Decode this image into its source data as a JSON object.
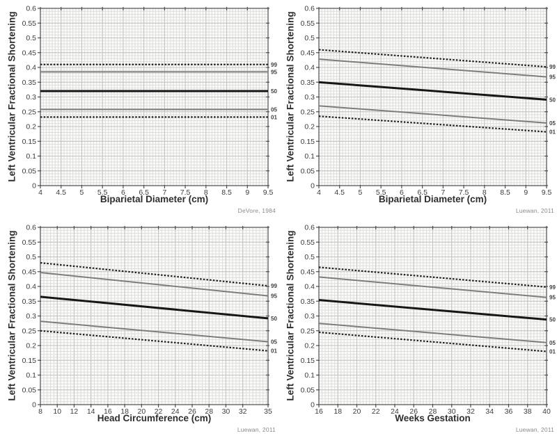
{
  "colors": {
    "page_bg": "#ffffff",
    "plot_bg": "#fbfbf9",
    "grid_minor": "#dddddb",
    "grid_major": "#c2c2c0",
    "frame": "#4d4d4d",
    "tick_text": "#3c3c3c",
    "axis_label": "#2e2e2e",
    "percentile_label": "#3f3f3f",
    "attribution": "#8a8a8a"
  },
  "line_styles": {
    "dashed_black": {
      "color": "#1f1f1f",
      "width": 2.2,
      "dash": "2.5 2.2"
    },
    "solid_gray": {
      "color": "#7d7d7d",
      "width": 2,
      "dash": ""
    },
    "solid_black_thick": {
      "color": "#161616",
      "width": 3,
      "dash": ""
    }
  },
  "chart_data": [
    {
      "type": "line",
      "position": "top-left",
      "xlabel": "Biparietal Diameter (cm)",
      "ylabel": "Left Ventricular Fractional Shortening",
      "attribution": "DeVore, 1984",
      "xlim": [
        4,
        9.5
      ],
      "ylim": [
        0,
        0.6
      ],
      "xticks": [
        4,
        4.5,
        5,
        5.5,
        6,
        6.5,
        7,
        7.5,
        8,
        8.5,
        9,
        9.5
      ],
      "yticks": [
        0,
        0.05,
        0.1,
        0.15,
        0.2,
        0.25,
        0.3,
        0.35,
        0.4,
        0.45,
        0.5,
        0.55,
        0.6
      ],
      "x_minor_per_major": 7,
      "y_minor_per_major": 5,
      "grid": "minor+major",
      "legend_position": "right-edge-labels",
      "series": [
        {
          "label": "99",
          "style": "dashed_black",
          "x": [
            4,
            9.5
          ],
          "y": [
            0.41,
            0.41
          ]
        },
        {
          "label": "95",
          "style": "solid_gray",
          "x": [
            4,
            9.5
          ],
          "y": [
            0.385,
            0.385
          ]
        },
        {
          "label": "50",
          "style": "solid_black_thick",
          "x": [
            4,
            9.5
          ],
          "y": [
            0.32,
            0.32
          ]
        },
        {
          "label": "05",
          "style": "solid_gray",
          "x": [
            4,
            9.5
          ],
          "y": [
            0.258,
            0.258
          ]
        },
        {
          "label": "01",
          "style": "dashed_black",
          "x": [
            4,
            9.5
          ],
          "y": [
            0.232,
            0.232
          ]
        }
      ]
    },
    {
      "type": "line",
      "position": "top-right",
      "xlabel": "Biparietal Diameter (cm)",
      "ylabel": "Left Ventricular Fractional Shortening",
      "attribution": "Luewan, 2011",
      "xlim": [
        4,
        9.5
      ],
      "ylim": [
        0,
        0.6
      ],
      "xticks": [
        4,
        4.5,
        5,
        5.5,
        6,
        6.5,
        7,
        7.5,
        8,
        8.5,
        9,
        9.5
      ],
      "yticks": [
        0,
        0.05,
        0.1,
        0.15,
        0.2,
        0.25,
        0.3,
        0.35,
        0.4,
        0.45,
        0.5,
        0.55,
        0.6
      ],
      "x_minor_per_major": 7,
      "y_minor_per_major": 5,
      "grid": "minor+major",
      "legend_position": "right-edge-labels",
      "series": [
        {
          "label": "99",
          "style": "dashed_black",
          "x": [
            4,
            9.5
          ],
          "y": [
            0.46,
            0.402
          ]
        },
        {
          "label": "95",
          "style": "solid_gray",
          "x": [
            4,
            9.5
          ],
          "y": [
            0.428,
            0.368
          ]
        },
        {
          "label": "50",
          "style": "solid_black_thick",
          "x": [
            4,
            9.5
          ],
          "y": [
            0.35,
            0.291
          ]
        },
        {
          "label": "05",
          "style": "solid_gray",
          "x": [
            4,
            9.5
          ],
          "y": [
            0.27,
            0.212
          ]
        },
        {
          "label": "01",
          "style": "dashed_black",
          "x": [
            4,
            9.5
          ],
          "y": [
            0.235,
            0.182
          ]
        }
      ]
    },
    {
      "type": "line",
      "position": "bottom-left",
      "xlabel": "Head Circumference (cm)",
      "ylabel": "Left Ventricular Fractional Shortening",
      "attribution": "Luewan, 2011",
      "xlim": [
        8,
        35
      ],
      "ylim": [
        0,
        0.6
      ],
      "xticks": [
        8,
        10,
        12,
        14,
        16,
        18,
        20,
        22,
        24,
        26,
        28,
        30,
        32,
        35
      ],
      "yticks": [
        0,
        0.05,
        0.1,
        0.15,
        0.2,
        0.25,
        0.3,
        0.35,
        0.4,
        0.45,
        0.5,
        0.55,
        0.6
      ],
      "x_minor_per_major": 5,
      "y_minor_per_major": 5,
      "grid": "minor+major",
      "legend_position": "right-edge-labels",
      "series": [
        {
          "label": "99",
          "style": "dashed_black",
          "x": [
            8,
            35
          ],
          "y": [
            0.48,
            0.402
          ]
        },
        {
          "label": "95",
          "style": "solid_gray",
          "x": [
            8,
            35
          ],
          "y": [
            0.447,
            0.368
          ]
        },
        {
          "label": "50",
          "style": "solid_black_thick",
          "x": [
            8,
            35
          ],
          "y": [
            0.365,
            0.292
          ]
        },
        {
          "label": "05",
          "style": "solid_gray",
          "x": [
            8,
            35
          ],
          "y": [
            0.282,
            0.213
          ]
        },
        {
          "label": "01",
          "style": "dashed_black",
          "x": [
            8,
            35
          ],
          "y": [
            0.25,
            0.182
          ]
        }
      ]
    },
    {
      "type": "line",
      "position": "bottom-right",
      "xlabel": "Weeks Gestation",
      "ylabel": "Left Ventricular Fractional Shortening",
      "attribution": "Luewan, 2011",
      "xlim": [
        16,
        40
      ],
      "ylim": [
        0,
        0.6
      ],
      "xticks": [
        16,
        18,
        20,
        22,
        24,
        26,
        28,
        30,
        32,
        34,
        36,
        38,
        40
      ],
      "yticks": [
        0,
        0.05,
        0.1,
        0.15,
        0.2,
        0.25,
        0.3,
        0.35,
        0.4,
        0.45,
        0.5,
        0.55,
        0.6
      ],
      "x_minor_per_major": 6,
      "y_minor_per_major": 5,
      "grid": "minor+major",
      "legend_position": "right-edge-labels",
      "series": [
        {
          "label": "99",
          "style": "dashed_black",
          "x": [
            16,
            40
          ],
          "y": [
            0.465,
            0.398
          ]
        },
        {
          "label": "95",
          "style": "solid_gray",
          "x": [
            16,
            40
          ],
          "y": [
            0.432,
            0.363
          ]
        },
        {
          "label": "50",
          "style": "solid_black_thick",
          "x": [
            16,
            40
          ],
          "y": [
            0.354,
            0.288
          ]
        },
        {
          "label": "05",
          "style": "solid_gray",
          "x": [
            16,
            40
          ],
          "y": [
            0.275,
            0.21
          ]
        },
        {
          "label": "01",
          "style": "dashed_black",
          "x": [
            16,
            40
          ],
          "y": [
            0.245,
            0.18
          ]
        }
      ]
    }
  ]
}
